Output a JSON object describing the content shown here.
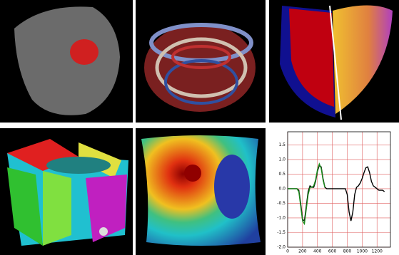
{
  "chart_data": {
    "type": "line",
    "x": [
      0,
      25,
      50,
      75,
      100,
      125,
      150,
      175,
      200,
      225,
      250,
      275,
      300,
      325,
      350,
      375,
      400,
      425,
      450,
      475,
      500,
      525,
      550,
      575,
      600,
      625,
      650,
      675,
      700,
      725,
      750,
      775,
      800,
      825,
      850,
      875,
      900,
      925,
      950,
      975,
      1000,
      1025,
      1050,
      1075,
      1100,
      1125,
      1150,
      1175,
      1200,
      1225,
      1250,
      1275,
      1300
    ],
    "series": [
      {
        "color": "#000000",
        "values": [
          0,
          0,
          0,
          0,
          0,
          0,
          -0.05,
          -0.5,
          -1.05,
          -1.1,
          -0.6,
          -0.1,
          0.1,
          0.05,
          0.05,
          0.25,
          0.6,
          0.8,
          0.75,
          0.35,
          0.05,
          0,
          0,
          0,
          0,
          0,
          0,
          0,
          0,
          0,
          0,
          0,
          -0.2,
          -0.8,
          -1.1,
          -0.8,
          -0.2,
          0.05,
          0.1,
          0.2,
          0.35,
          0.55,
          0.72,
          0.75,
          0.55,
          0.25,
          0.1,
          0.05,
          0,
          -0.05,
          -0.05,
          -0.05,
          -0.1
        ]
      },
      {
        "color": "#1a8c1a",
        "values": [
          0,
          0,
          0,
          0,
          0,
          0,
          -0.1,
          -0.6,
          -1.1,
          -1.2,
          -0.7,
          -0.2,
          0.05,
          0.05,
          0.1,
          0.3,
          0.65,
          0.85,
          0.7,
          0.3,
          0.05,
          null,
          null,
          null,
          null,
          null,
          null,
          null,
          null,
          null,
          null,
          null,
          null,
          null,
          null,
          null,
          null,
          null,
          null,
          null,
          null,
          null,
          null,
          null,
          null,
          null,
          null,
          null,
          null,
          null,
          null,
          null,
          null
        ]
      }
    ],
    "xlim": [
      0,
      1380
    ],
    "ylim": [
      -2.0,
      1.95
    ],
    "xticks": [
      0,
      200,
      400,
      600,
      800,
      1000,
      1200
    ],
    "yticks": [
      {
        "value": -2.0,
        "label": "-2.0"
      },
      {
        "value": -1.5,
        "label": "-1.5"
      },
      {
        "value": -1.0,
        "label": "-1.0"
      },
      {
        "value": -0.5,
        "label": "-0.5"
      },
      {
        "value": 0.0,
        "label": "0.0"
      },
      {
        "value": 0.5,
        "label": "0.5"
      },
      {
        "value": 1.0,
        "label": "1.0"
      },
      {
        "value": 1.5,
        "label": "1.5"
      }
    ],
    "grid": true,
    "grid_color": "#e06060"
  }
}
